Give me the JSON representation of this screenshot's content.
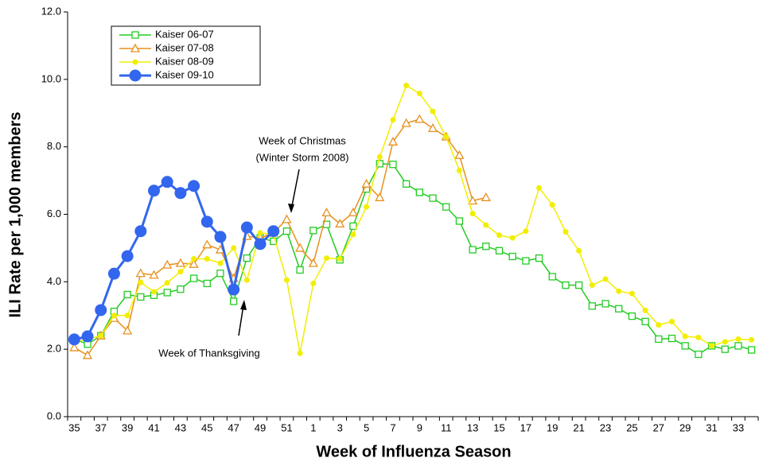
{
  "chart_data": {
    "type": "line",
    "xlabel": "Week of Influenza Season",
    "ylabel": "ILI Rate per 1,000 members",
    "categories": [
      "35",
      null,
      "37",
      null,
      "39",
      null,
      "41",
      null,
      "43",
      null,
      "45",
      null,
      "47",
      null,
      "49",
      null,
      "51",
      null,
      "1",
      null,
      "3",
      null,
      "5",
      null,
      "7",
      null,
      "9",
      null,
      "11",
      null,
      "13",
      null,
      "15",
      null,
      "17",
      null,
      "19",
      null,
      "21",
      null,
      "23",
      null,
      "25",
      null,
      "27",
      null,
      "29",
      null,
      "31",
      null,
      "33",
      null
    ],
    "ylim": [
      0,
      12
    ],
    "yticks": [
      {
        "value": 0,
        "label": "0.0"
      },
      {
        "value": 2,
        "label": "2.0"
      },
      {
        "value": 4,
        "label": "4.0"
      },
      {
        "value": 6,
        "label": "6.0"
      },
      {
        "value": 8,
        "label": "8.0"
      },
      {
        "value": 10,
        "label": "10.0"
      },
      {
        "value": 12,
        "label": "12.0"
      }
    ],
    "legend": "upper left",
    "annotations": [
      {
        "lines": [
          "Week of Christmas",
          "(Winter Storm 2008)"
        ]
      },
      {
        "lines": [
          "Week of Thanksgiving"
        ]
      }
    ],
    "series": [
      {
        "name": "Kaiser 06-07",
        "color": "#22cc22",
        "marker": "square",
        "values": [
          2.3,
          2.15,
          2.4,
          3.12,
          3.62,
          3.55,
          3.6,
          3.68,
          3.78,
          4.1,
          3.95,
          4.25,
          3.42,
          4.7,
          5.3,
          5.2,
          5.5,
          4.35,
          5.52,
          5.7,
          4.65,
          5.65,
          6.75,
          7.5,
          7.48,
          6.9,
          6.65,
          6.48,
          6.22,
          5.8,
          4.95,
          5.05,
          4.92,
          4.75,
          4.62,
          4.7,
          4.15,
          3.9,
          3.9,
          3.28,
          3.35,
          3.2,
          2.98,
          2.82,
          2.3,
          2.32,
          2.1,
          1.85,
          2.1,
          2.0,
          2.1,
          1.98
        ]
      },
      {
        "name": "Kaiser 07-08",
        "color": "#e8901e",
        "marker": "triangle",
        "values": [
          2.05,
          1.82,
          2.4,
          2.92,
          2.55,
          4.25,
          4.2,
          4.5,
          4.55,
          4.52,
          5.1,
          4.95,
          4.1,
          5.35,
          5.3,
          5.45,
          5.85,
          5.0,
          4.55,
          6.05,
          5.72,
          6.05,
          6.9,
          6.5,
          8.15,
          8.7,
          8.82,
          8.55,
          8.3,
          7.75,
          6.4,
          6.5,
          null,
          null,
          null,
          null,
          null,
          null,
          null,
          null,
          null,
          null,
          null,
          null,
          null,
          null,
          null,
          null,
          null,
          null,
          null,
          null
        ]
      },
      {
        "name": "Kaiser 08-09",
        "color": "#f2ee00",
        "marker": "dot",
        "values": [
          2.2,
          2.3,
          2.4,
          3.0,
          3.0,
          3.98,
          3.7,
          3.97,
          4.3,
          4.68,
          4.68,
          4.55,
          5.0,
          4.05,
          5.45,
          5.4,
          4.05,
          1.88,
          3.95,
          4.7,
          4.68,
          5.4,
          6.22,
          7.7,
          8.8,
          9.82,
          9.58,
          9.05,
          8.3,
          7.3,
          6.02,
          5.68,
          5.38,
          5.3,
          5.5,
          6.78,
          6.28,
          5.48,
          4.92,
          3.9,
          4.08,
          3.72,
          3.65,
          3.15,
          2.72,
          2.82,
          2.38,
          2.35,
          2.1,
          2.22,
          2.3,
          2.28
        ]
      },
      {
        "name": "Kaiser 09-10",
        "color": "#3366ee",
        "marker": "bigdot",
        "values": [
          2.29,
          2.38,
          3.16,
          4.24,
          4.76,
          5.5,
          6.7,
          6.96,
          6.63,
          6.84,
          5.78,
          5.33,
          3.77,
          5.61,
          5.12,
          5.5,
          null,
          null,
          null,
          null,
          null,
          null,
          null,
          null,
          null,
          null,
          null,
          null,
          null,
          null,
          null,
          null,
          null,
          null,
          null,
          null,
          null,
          null,
          null,
          null,
          null,
          null,
          null,
          null,
          null,
          null,
          null,
          null,
          null,
          null,
          null,
          null
        ]
      }
    ]
  }
}
